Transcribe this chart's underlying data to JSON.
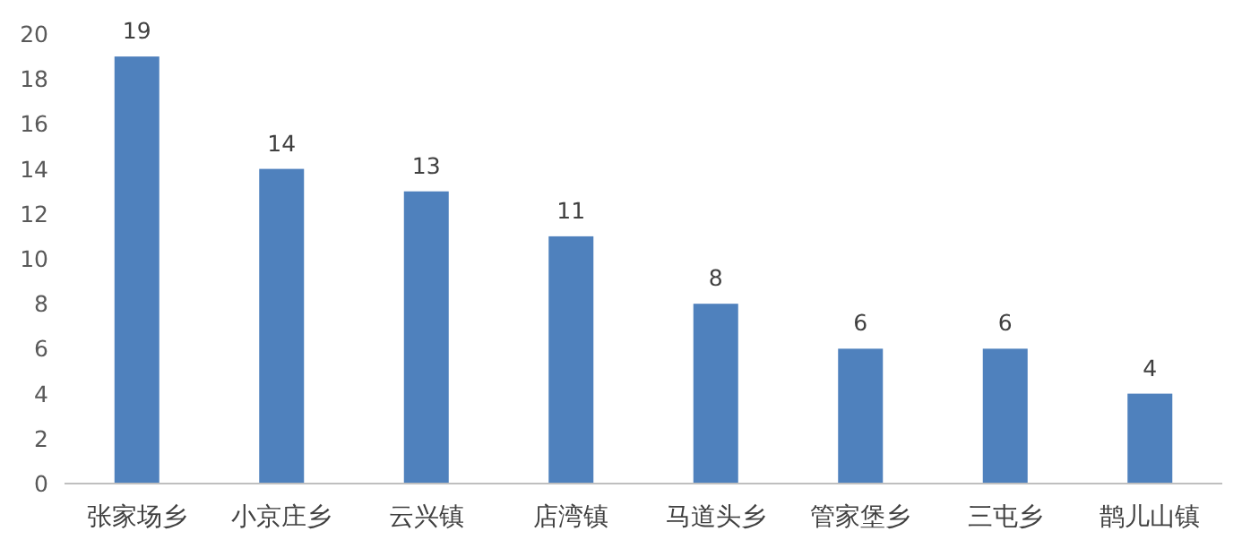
{
  "chart_data": {
    "type": "bar",
    "categories": [
      "张家场乡",
      "小京庄乡",
      "云兴镇",
      "店湾镇",
      "马道头乡",
      "管家堡乡",
      "三屯乡",
      "鹊儿山镇"
    ],
    "values": [
      19,
      14,
      13,
      11,
      8,
      6,
      6,
      4
    ],
    "color": "#4f81bd",
    "ylim": [
      0,
      20
    ],
    "yticks": [
      0,
      2,
      4,
      6,
      8,
      10,
      12,
      14,
      16,
      18,
      20
    ],
    "data_labels": true
  }
}
